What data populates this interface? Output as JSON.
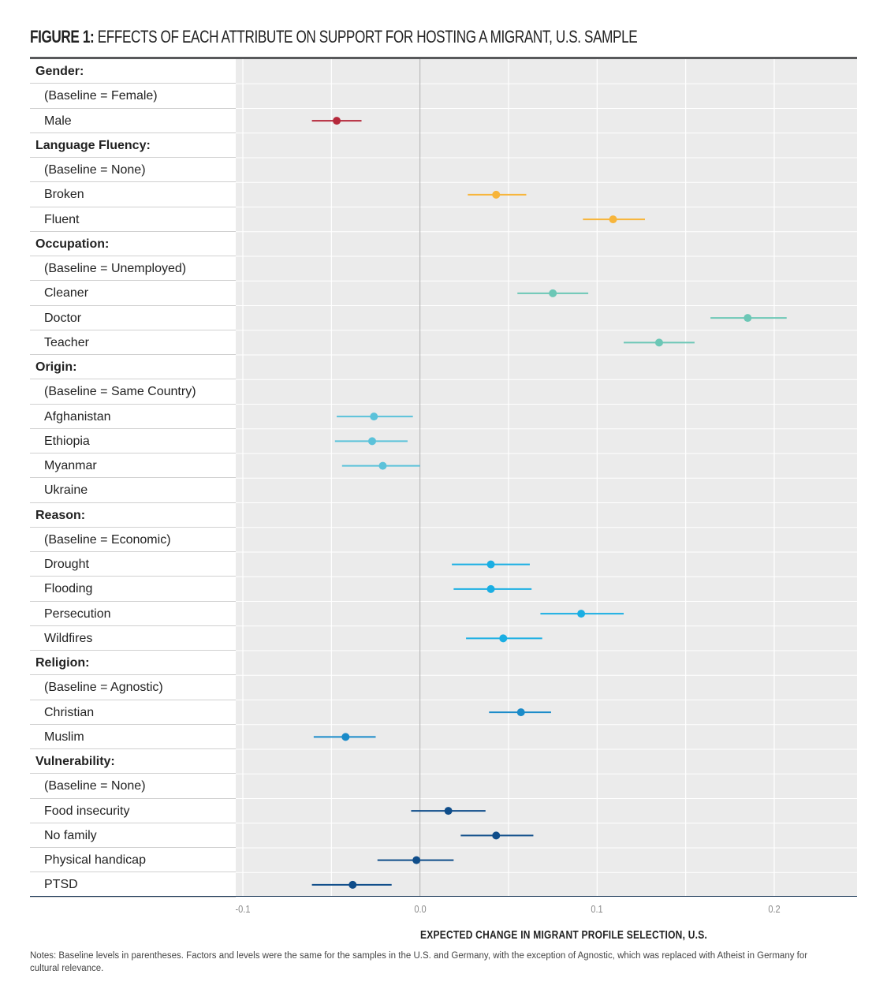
{
  "title": {
    "prefix": "FIGURE 1:",
    "text": "EFFECTS OF EACH ATTRIBUTE ON SUPPORT FOR HOSTING A MIGRANT, U.S. SAMPLE"
  },
  "notes": "Notes: Baseline levels in parentheses. Factors and levels were the same for the samples in the U.S. and Germany, with the exception of Agnostic, which was replaced with Atheist in Germany for cultural relevance.",
  "chart_data": {
    "type": "scatter",
    "orientation": "horizontal",
    "xlabel": "EXPECTED CHANGE IN MIGRANT PROFILE SELECTION, U.S.",
    "xlim": [
      -0.1,
      0.25
    ],
    "xticks": [
      -0.1,
      0.0,
      0.1,
      0.2
    ],
    "xtick_labels": [
      "-0.1",
      "0.0",
      "0.1",
      "0.2"
    ],
    "reference_line": 0.0,
    "grid": true,
    "colors": {
      "background": "#ebebeb",
      "gridline": "#ffffff",
      "zero_line": "#b0b0b0",
      "gender": "#b5293b",
      "language": "#f7b53b",
      "occupation": "#6cc7b6",
      "origin": "#5bc2da",
      "reason": "#1aaee3",
      "religion": "#1a8bc9",
      "vulnerability": "#0f4d8a"
    },
    "rows": [
      {
        "label": "Gender:",
        "kind": "head"
      },
      {
        "label": "(Baseline = Female)",
        "kind": "level"
      },
      {
        "label": "Male",
        "kind": "level",
        "group": "gender",
        "est": -0.047,
        "lo": -0.061,
        "hi": -0.033
      },
      {
        "label": "Language Fluency:",
        "kind": "head"
      },
      {
        "label": "(Baseline = None)",
        "kind": "level"
      },
      {
        "label": "Broken",
        "kind": "level",
        "group": "language",
        "est": 0.043,
        "lo": 0.027,
        "hi": 0.06
      },
      {
        "label": "Fluent",
        "kind": "level",
        "group": "language",
        "est": 0.109,
        "lo": 0.092,
        "hi": 0.127
      },
      {
        "label": "Occupation:",
        "kind": "head"
      },
      {
        "label": "(Baseline = Unemployed)",
        "kind": "level"
      },
      {
        "label": "Cleaner",
        "kind": "level",
        "group": "occupation",
        "est": 0.075,
        "lo": 0.055,
        "hi": 0.095
      },
      {
        "label": "Doctor",
        "kind": "level",
        "group": "occupation",
        "est": 0.185,
        "lo": 0.164,
        "hi": 0.207
      },
      {
        "label": "Teacher",
        "kind": "level",
        "group": "occupation",
        "est": 0.135,
        "lo": 0.115,
        "hi": 0.155
      },
      {
        "label": "Origin:",
        "kind": "head"
      },
      {
        "label": "(Baseline = Same Country)",
        "kind": "level"
      },
      {
        "label": "Afghanistan",
        "kind": "level",
        "group": "origin",
        "est": -0.026,
        "lo": -0.047,
        "hi": -0.004
      },
      {
        "label": "Ethiopia",
        "kind": "level",
        "group": "origin",
        "est": -0.027,
        "lo": -0.048,
        "hi": -0.007
      },
      {
        "label": "Myanmar",
        "kind": "level",
        "group": "origin",
        "est": -0.021,
        "lo": -0.044,
        "hi": 0.0
      },
      {
        "label": "Ukraine",
        "kind": "level"
      },
      {
        "label": "Reason:",
        "kind": "head"
      },
      {
        "label": "(Baseline = Economic)",
        "kind": "level"
      },
      {
        "label": "Drought",
        "kind": "level",
        "group": "reason",
        "est": 0.04,
        "lo": 0.018,
        "hi": 0.062
      },
      {
        "label": "Flooding",
        "kind": "level",
        "group": "reason",
        "est": 0.04,
        "lo": 0.019,
        "hi": 0.063
      },
      {
        "label": "Persecution",
        "kind": "level",
        "group": "reason",
        "est": 0.091,
        "lo": 0.068,
        "hi": 0.115
      },
      {
        "label": "Wildfires",
        "kind": "level",
        "group": "reason",
        "est": 0.047,
        "lo": 0.026,
        "hi": 0.069
      },
      {
        "label": "Religion:",
        "kind": "head"
      },
      {
        "label": "(Baseline = Agnostic)",
        "kind": "level"
      },
      {
        "label": "Christian",
        "kind": "level",
        "group": "religion",
        "est": 0.057,
        "lo": 0.039,
        "hi": 0.074
      },
      {
        "label": "Muslim",
        "kind": "level",
        "group": "religion",
        "est": -0.042,
        "lo": -0.06,
        "hi": -0.025
      },
      {
        "label": "Vulnerability:",
        "kind": "head"
      },
      {
        "label": "(Baseline = None)",
        "kind": "level"
      },
      {
        "label": "Food insecurity",
        "kind": "level",
        "group": "vulnerability",
        "est": 0.016,
        "lo": -0.005,
        "hi": 0.037
      },
      {
        "label": "No family",
        "kind": "level",
        "group": "vulnerability",
        "est": 0.043,
        "lo": 0.023,
        "hi": 0.064
      },
      {
        "label": "Physical handicap",
        "kind": "level",
        "group": "vulnerability",
        "est": -0.002,
        "lo": -0.024,
        "hi": 0.019
      },
      {
        "label": "PTSD",
        "kind": "level",
        "group": "vulnerability",
        "est": -0.038,
        "lo": -0.061,
        "hi": -0.016
      }
    ]
  }
}
